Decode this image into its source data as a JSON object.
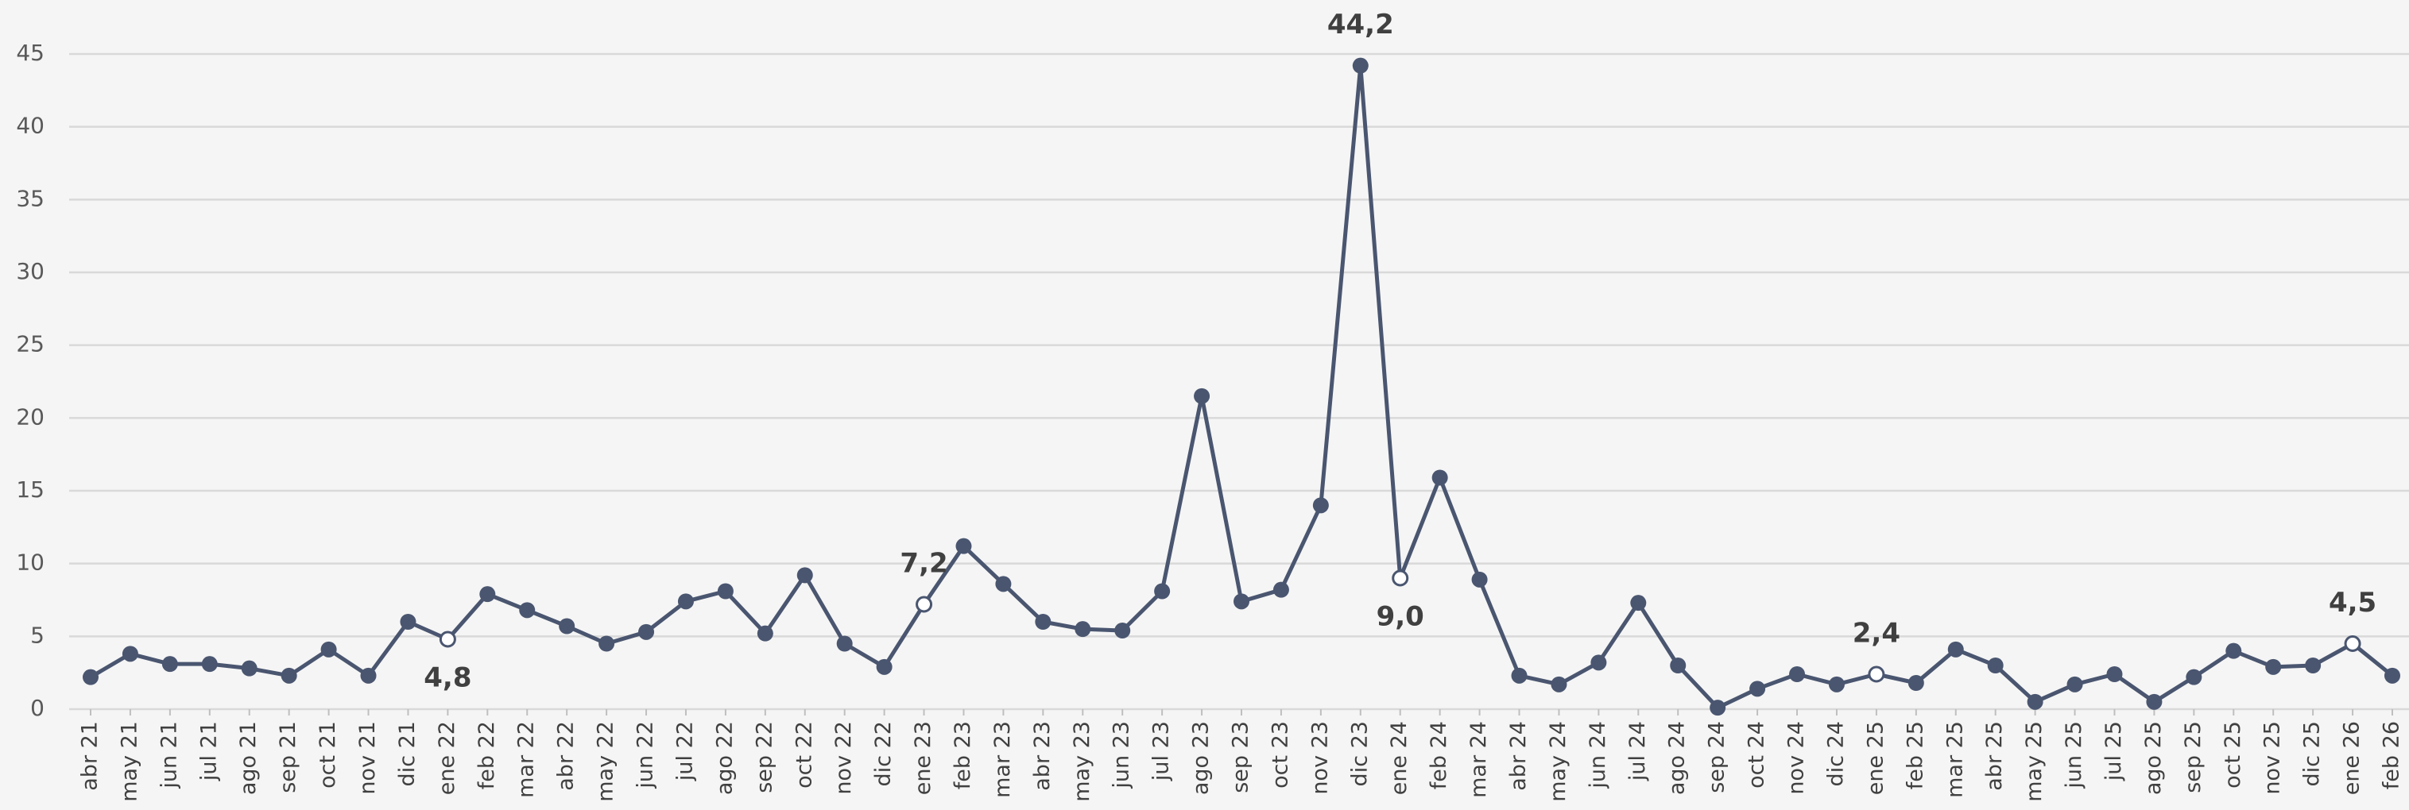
{
  "chart_data": {
    "type": "line",
    "categories": [
      "abr 21",
      "may 21",
      "jun 21",
      "jul 21",
      "ago 21",
      "sep 21",
      "oct 21",
      "nov 21",
      "dic 21",
      "ene 22",
      "feb 22",
      "mar 22",
      "abr 22",
      "may 22",
      "jun 22",
      "jul 22",
      "ago 22",
      "sep 22",
      "oct 22",
      "nov 22",
      "dic 22",
      "ene 23",
      "feb 23",
      "mar 23",
      "abr 23",
      "may 23",
      "jun 23",
      "jul 23",
      "ago 23",
      "sep 23",
      "oct 23",
      "nov 23",
      "dic 23",
      "ene 24",
      "feb 24",
      "mar 24",
      "abr 24",
      "may 24",
      "jun 24",
      "jul 24",
      "ago 24",
      "sep 24",
      "oct 24",
      "nov 24",
      "dic 24",
      "ene 25",
      "feb 25",
      "mar 25",
      "abr 25",
      "may 25",
      "jun 25",
      "jul 25",
      "ago 25",
      "sep 25",
      "oct 25",
      "nov 25",
      "dic 25",
      "ene 26",
      "feb 26"
    ],
    "values": [
      2.2,
      3.8,
      3.1,
      3.1,
      2.8,
      2.3,
      4.1,
      2.3,
      6.0,
      4.8,
      7.9,
      6.8,
      5.7,
      4.5,
      5.3,
      7.4,
      8.1,
      5.2,
      9.2,
      4.5,
      2.9,
      7.2,
      11.2,
      8.6,
      6.0,
      5.5,
      5.4,
      8.1,
      21.5,
      7.4,
      8.2,
      14.0,
      44.2,
      9.0,
      15.9,
      8.9,
      2.3,
      1.7,
      3.2,
      7.3,
      3.0,
      0.1,
      1.4,
      2.4,
      1.7,
      2.4,
      1.8,
      4.1,
      3.0,
      0.5,
      1.7,
      2.4,
      0.5,
      2.2,
      4.0,
      2.9,
      3.0,
      4.5,
      2.3
    ],
    "value_labels": [
      null,
      null,
      null,
      null,
      null,
      null,
      null,
      null,
      null,
      "4,8",
      null,
      null,
      null,
      null,
      null,
      null,
      null,
      null,
      null,
      null,
      null,
      "7,2",
      null,
      null,
      null,
      null,
      null,
      null,
      null,
      null,
      null,
      null,
      "44,2",
      "9,0",
      null,
      null,
      null,
      null,
      null,
      null,
      null,
      null,
      null,
      null,
      null,
      "2,4",
      null,
      null,
      null,
      null,
      null,
      null,
      null,
      null,
      null,
      null,
      null,
      "4,5",
      null
    ],
    "hollow_points": [
      9,
      21,
      33,
      45,
      57
    ],
    "color": "#4a5670",
    "ylim": [
      0,
      45
    ],
    "yticks": [
      0,
      5,
      10,
      15,
      20,
      25,
      30,
      35,
      40,
      45
    ],
    "grid": true
  }
}
